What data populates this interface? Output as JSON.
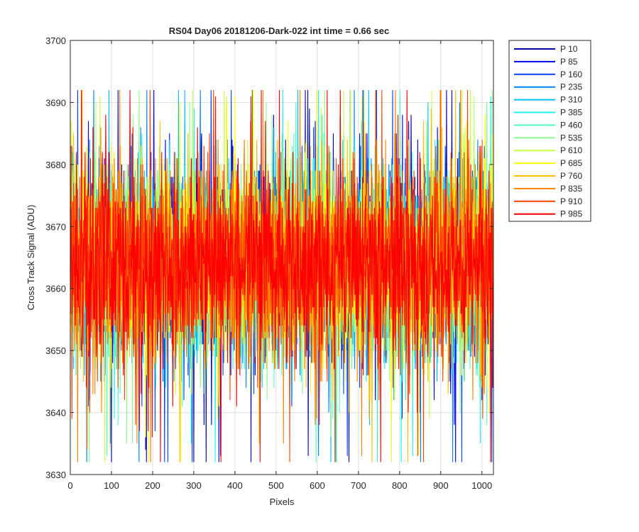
{
  "chart_data": {
    "type": "line",
    "title": "RS04 Day06 20181206-Dark-022 int time = 0.66 sec",
    "xlabel": "Pixels",
    "ylabel": "Cross Track Signal (ADU)",
    "xlim": [
      0,
      1028
    ],
    "ylim": [
      3630,
      3700
    ],
    "xticks": [
      0,
      100,
      200,
      300,
      400,
      500,
      600,
      700,
      800,
      900,
      1000
    ],
    "yticks": [
      3630,
      3640,
      3650,
      3660,
      3670,
      3680,
      3690,
      3700
    ],
    "grid": true,
    "legend_position": "outside-top-right",
    "points_per_series": 1028,
    "signal_mean": 3664,
    "signal_typical_min": 3645,
    "signal_typical_max": 3683,
    "series": [
      {
        "name": "P 10",
        "color": "#0000aa"
      },
      {
        "name": "P 85",
        "color": "#0000e6"
      },
      {
        "name": "P 160",
        "color": "#0040ff"
      },
      {
        "name": "P 235",
        "color": "#0080ff"
      },
      {
        "name": "P 310",
        "color": "#00bfff"
      },
      {
        "name": "P 385",
        "color": "#1ef0f0"
      },
      {
        "name": "P 460",
        "color": "#50ffc8"
      },
      {
        "name": "P 535",
        "color": "#8cff8c"
      },
      {
        "name": "P 610",
        "color": "#c8ff40"
      },
      {
        "name": "P 685",
        "color": "#ffff00"
      },
      {
        "name": "P 760",
        "color": "#ffbf00"
      },
      {
        "name": "P 835",
        "color": "#ff8000"
      },
      {
        "name": "P 910",
        "color": "#ff4000"
      },
      {
        "name": "P 985",
        "color": "#ff0000"
      }
    ]
  }
}
